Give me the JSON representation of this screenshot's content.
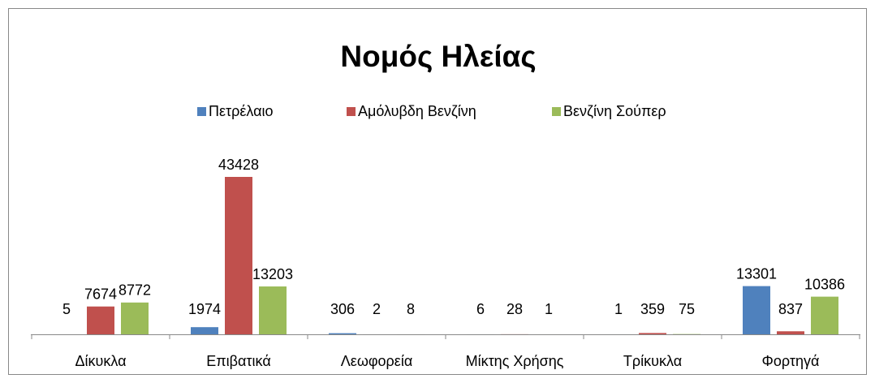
{
  "chart_data": {
    "type": "bar",
    "title": "Νομός Ηλείας",
    "categories": [
      "Δίκυκλα",
      "Επιβατικά",
      "Λεωφορεία",
      "Μίκτης Χρήσης",
      "Τρίκυκλα",
      "Φορτηγά"
    ],
    "series": [
      {
        "name": "Πετρέλαιο",
        "color": "#4f81bd",
        "values": [
          5,
          1974,
          306,
          6,
          1,
          13301
        ]
      },
      {
        "name": "Αμόλυβδη Βενζίνη",
        "color": "#c0504d",
        "values": [
          7674,
          43428,
          2,
          28,
          359,
          837
        ]
      },
      {
        "name": "Βενζίνη Σούπερ",
        "color": "#9bbb59",
        "values": [
          8772,
          13203,
          8,
          1,
          75,
          10386
        ]
      }
    ],
    "legend": "top"
  }
}
